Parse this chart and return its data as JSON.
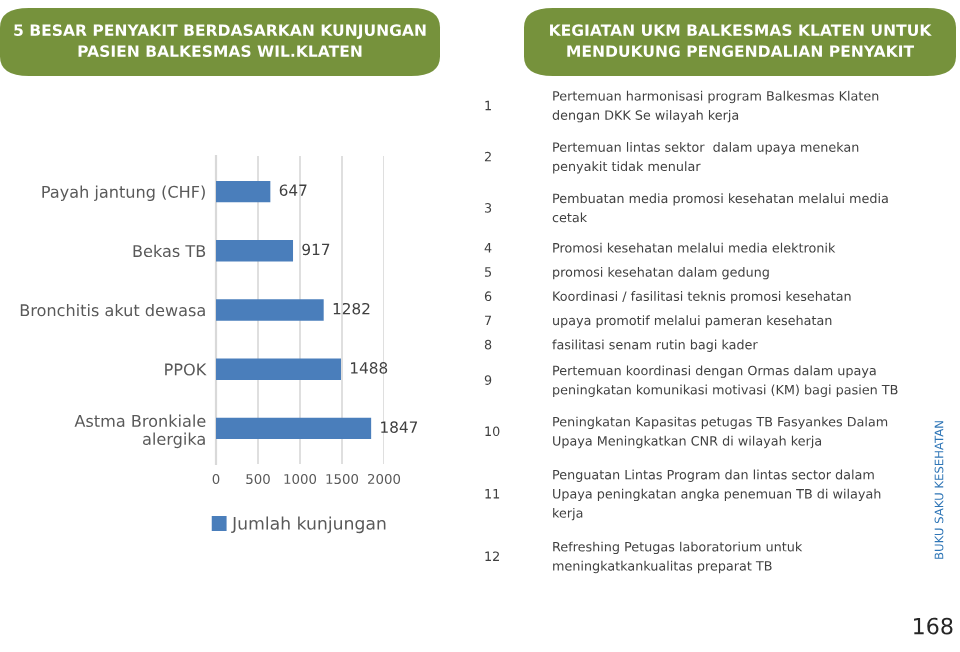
{
  "chart_data": [
    {
      "type": "bar",
      "orientation": "horizontal",
      "title": "5 BESAR PENYAKIT BERDASARKAN KUNJUNGAN\nPASIEN BALKESMAS WIL.KLATEN",
      "categories": [
        "Payah jantung (CHF)",
        "Bekas TB",
        "Bronchitis akut dewasa",
        "PPOK",
        "Astma Bronkiale\nalergika"
      ],
      "series": [
        {
          "name": "Jumlah kunjungan",
          "color": "#4a7ebb",
          "values": [
            647,
            917,
            1282,
            1488,
            1847
          ]
        }
      ],
      "xlim": [
        0,
        2000
      ],
      "xticks": [
        0,
        500,
        1000,
        1500,
        2000
      ],
      "grid": "x",
      "legend": "bottom",
      "data_labels": true
    },
    {
      "type": "other",
      "title": "KEGIATAN UKM BALKESMAS KLATEN UNTUK\nMENDUKUNG PENGENDALIAN PENYAKIT",
      "categories": [
        "1",
        "2",
        "3",
        "4",
        "5",
        "6",
        "7",
        "8",
        "9",
        "10",
        "11",
        "12"
      ],
      "annotations": [
        "Pertemuan harmonisasi program Balkesmas Klaten\ndengan DKK Se wilayah kerja",
        "Pertemuan lintas sektor  dalam upaya menekan\npenyakit tidak menular",
        "Pembuatan media promosi kesehatan melalui media\ncetak",
        "Promosi kesehatan melalui media elektronik",
        "promosi kesehatan dalam gedung",
        "Koordinasi / fasilitasi teknis promosi kesehatan",
        "upaya promotif melalui pameran kesehatan",
        "fasilitasi senam rutin bagi kader",
        "Pertemuan koordinasi dengan Ormas dalam upaya\npeningkatan komunikasi motivasi (KM) bagi pasien TB",
        "Peningkatan Kapasitas petugas TB Fasyankes Dalam\nUpaya Meningkatkan CNR di wilayah kerja",
        "Penguatan Lintas Program dan lintas sector dalam\nUpaya peningkatan angka penemuan TB di wilayah\nkerja",
        "Refreshing Petugas laboratorium untuk\nmeningkatkankualitas preparat TB",
        "BUKU SAKU KESEHATAN",
        "168"
      ]
    }
  ]
}
